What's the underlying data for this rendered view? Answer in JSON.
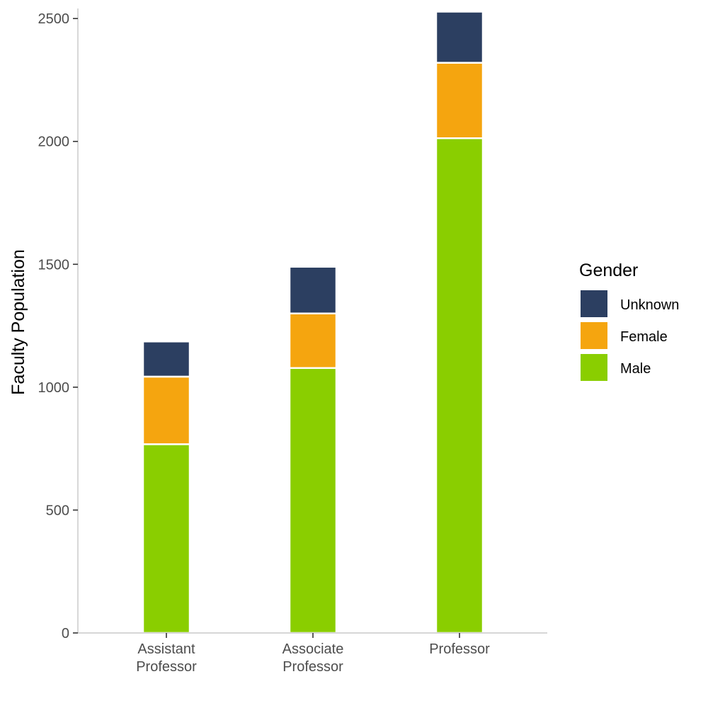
{
  "chart_data": {
    "type": "bar",
    "stacked": true,
    "categories": [
      [
        "Assistant",
        "Professor"
      ],
      [
        "Associate",
        "Professor"
      ],
      [
        "Professor"
      ]
    ],
    "series": [
      {
        "name": "Male",
        "color": "#8ACE00",
        "values": [
          768,
          1078,
          2013
        ]
      },
      {
        "name": "Female",
        "color": "#F5A50F",
        "values": [
          275,
          222,
          307
        ]
      },
      {
        "name": "Unknown",
        "color": "#2C3F61",
        "values": [
          143,
          190,
          208
        ]
      }
    ],
    "title": "",
    "xlabel": "",
    "ylabel": "Faculty Population",
    "ylim": [
      0,
      2530
    ],
    "yticks": [
      0,
      500,
      1000,
      1500,
      2000,
      2500
    ],
    "legend": {
      "title": "Gender",
      "order": [
        "Unknown",
        "Female",
        "Male"
      ],
      "position": "right"
    },
    "grid": false
  }
}
